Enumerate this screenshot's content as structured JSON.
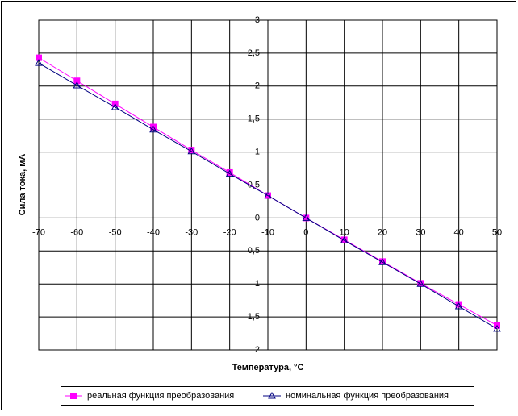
{
  "chart_data": {
    "type": "line",
    "x_label": "Температура, °С",
    "y_label": "Сила тока, мА",
    "x": [
      -70,
      -60,
      -50,
      -40,
      -30,
      -20,
      -10,
      0,
      10,
      20,
      30,
      40,
      50
    ],
    "series": [
      {
        "name": "реальная функция преобразования",
        "color": "#ff00ff",
        "marker": "square",
        "values": [
          2.43,
          2.08,
          1.73,
          1.38,
          1.03,
          0.69,
          0.34,
          0,
          -0.33,
          -0.66,
          -0.99,
          -1.31,
          -1.63
        ]
      },
      {
        "name": "номинальная функция преобразования",
        "color": "#000080",
        "marker": "triangle",
        "values": [
          2.35,
          2.01,
          1.68,
          1.34,
          1.01,
          0.67,
          0.34,
          0,
          -0.34,
          -0.67,
          -1.0,
          -1.34,
          -1.68
        ]
      }
    ],
    "xlim": [
      -70,
      50
    ],
    "xticks": [
      -70,
      -60,
      -50,
      -40,
      -30,
      -20,
      -10,
      0,
      10,
      20,
      30,
      40,
      50
    ],
    "ylim": [
      -2,
      3
    ],
    "yticks": [
      {
        "value": -2,
        "label": "2"
      },
      {
        "value": -1.5,
        "label": "1,5"
      },
      {
        "value": -1,
        "label": "1"
      },
      {
        "value": -0.5,
        "label": "0,5"
      },
      0,
      {
        "value": 0.5,
        "label": "0,5"
      },
      1,
      {
        "value": 1.5,
        "label": "1,5"
      },
      2,
      {
        "value": 2.5,
        "label": "2,5"
      },
      3
    ],
    "grid": true,
    "legend": "bottom"
  }
}
